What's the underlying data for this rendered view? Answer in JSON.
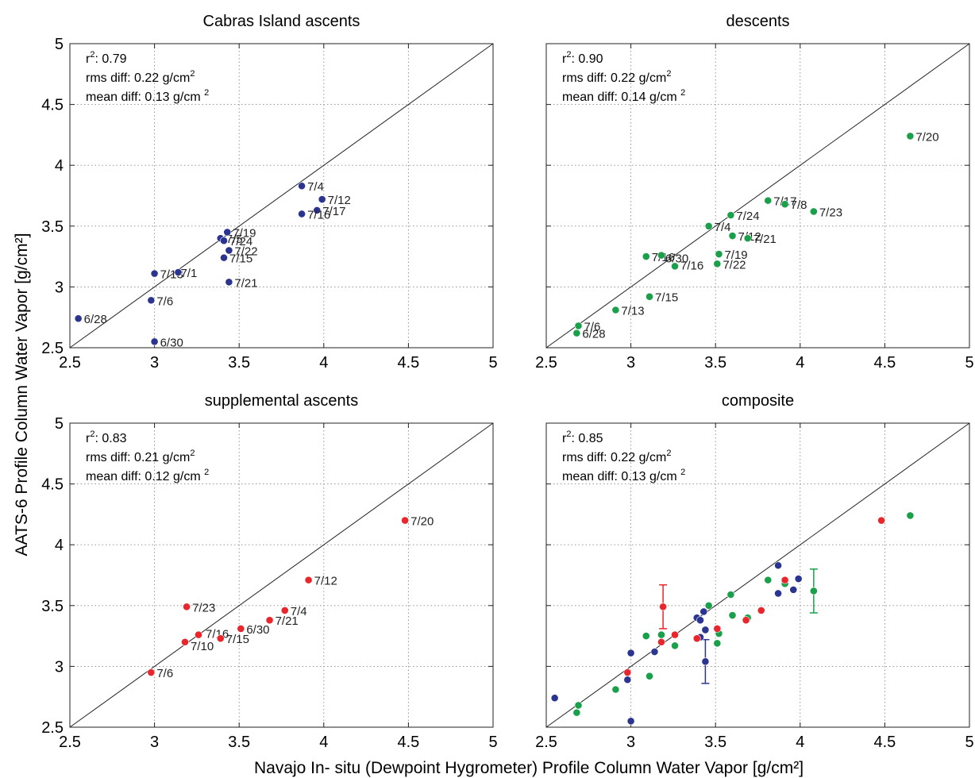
{
  "figure": {
    "ylabel": "AATS-6 Profile Column Water Vapor [g/cm²]",
    "xlabel": "Navajo In- situ (Dewpoint Hygrometer) Profile Column Water Vapor [g/cm²]"
  },
  "chart_data": [
    {
      "type": "scatter",
      "title": "Cabras Island ascents",
      "xlim": [
        2.5,
        5
      ],
      "ylim": [
        2.5,
        5
      ],
      "xticks": [
        "2.5",
        "3",
        "3.5",
        "4",
        "4.5",
        "5"
      ],
      "yticks": [
        "2.5",
        "3",
        "3.5",
        "4",
        "4.5",
        "5"
      ],
      "grid": true,
      "reference_line": "1:1",
      "stats": [
        "r²: 0.79",
        "rms diff: 0.22 g/cm²",
        "mean diff: 0.13 g/cm ²"
      ],
      "color": "#2b3590",
      "points": [
        {
          "x": 2.55,
          "y": 2.74,
          "label": "6/28"
        },
        {
          "x": 2.98,
          "y": 2.89,
          "label": "7/6"
        },
        {
          "x": 3.0,
          "y": 2.55,
          "label": "6/30"
        },
        {
          "x": 3.0,
          "y": 3.11,
          "label": "7/13"
        },
        {
          "x": 3.14,
          "y": 3.12,
          "label": "7/1"
        },
        {
          "x": 3.39,
          "y": 3.4,
          "label": "7/5"
        },
        {
          "x": 3.43,
          "y": 3.45,
          "label": "7/19"
        },
        {
          "x": 3.41,
          "y": 3.38,
          "label": "7/24"
        },
        {
          "x": 3.44,
          "y": 3.3,
          "label": "7/22"
        },
        {
          "x": 3.41,
          "y": 3.24,
          "label": "7/15"
        },
        {
          "x": 3.44,
          "y": 3.04,
          "label": "7/21"
        },
        {
          "x": 3.87,
          "y": 3.83,
          "label": "7/4"
        },
        {
          "x": 3.99,
          "y": 3.72,
          "label": "7/12"
        },
        {
          "x": 3.96,
          "y": 3.63,
          "label": "7/17"
        },
        {
          "x": 3.87,
          "y": 3.6,
          "label": "7/16"
        }
      ]
    },
    {
      "type": "scatter",
      "title": "descents",
      "xlim": [
        2.5,
        5
      ],
      "ylim": [
        2.5,
        5
      ],
      "xticks": [
        "2.5",
        "3",
        "3.5",
        "4",
        "4.5",
        "5"
      ],
      "yticks": [],
      "grid": true,
      "reference_line": "1:1",
      "stats": [
        "r²: 0.90",
        "rms diff: 0.22 g/cm²",
        "mean diff:  0.14 g/cm ²"
      ],
      "color": "#1aa04a",
      "points": [
        {
          "x": 2.69,
          "y": 2.68,
          "label": "7/6"
        },
        {
          "x": 2.68,
          "y": 2.62,
          "label": "6/28"
        },
        {
          "x": 2.91,
          "y": 2.81,
          "label": "7/13"
        },
        {
          "x": 3.11,
          "y": 2.92,
          "label": "7/15"
        },
        {
          "x": 3.09,
          "y": 3.25,
          "label": "7/16"
        },
        {
          "x": 3.18,
          "y": 3.26,
          "label": "6/30"
        },
        {
          "x": 3.26,
          "y": 3.17,
          "label": "7/16"
        },
        {
          "x": 3.46,
          "y": 3.5,
          "label": "7/4"
        },
        {
          "x": 3.59,
          "y": 3.59,
          "label": "7/24"
        },
        {
          "x": 3.6,
          "y": 3.42,
          "label": "7/12"
        },
        {
          "x": 3.69,
          "y": 3.4,
          "label": "7/21"
        },
        {
          "x": 3.52,
          "y": 3.27,
          "label": "7/19"
        },
        {
          "x": 3.51,
          "y": 3.19,
          "label": "7/22"
        },
        {
          "x": 3.81,
          "y": 3.71,
          "label": "7/17"
        },
        {
          "x": 3.91,
          "y": 3.68,
          "label": "7/8"
        },
        {
          "x": 4.08,
          "y": 3.62,
          "label": "7/23"
        },
        {
          "x": 4.65,
          "y": 4.24,
          "label": "7/20"
        }
      ]
    },
    {
      "type": "scatter",
      "title": "supplemental ascents",
      "xlim": [
        2.5,
        5
      ],
      "ylim": [
        2.5,
        5
      ],
      "xticks": [
        "2.5",
        "3",
        "3.5",
        "4",
        "4.5",
        "5"
      ],
      "yticks": [
        "2.5",
        "3",
        "3.5",
        "4",
        "4.5",
        "5"
      ],
      "grid": true,
      "reference_line": "1:1",
      "stats": [
        "r²: 0.83",
        "rms diff: 0.21 g/cm²",
        "mean diff:  0.12 g/cm ²"
      ],
      "color": "#e8262b",
      "points": [
        {
          "x": 2.98,
          "y": 2.95,
          "label": "7/6"
        },
        {
          "x": 3.18,
          "y": 3.2,
          "label": "7/10"
        },
        {
          "x": 3.26,
          "y": 3.26,
          "label": "7/16"
        },
        {
          "x": 3.39,
          "y": 3.23,
          "label": "7/15"
        },
        {
          "x": 3.19,
          "y": 3.49,
          "label": "7/23"
        },
        {
          "x": 3.51,
          "y": 3.31,
          "label": "6/30"
        },
        {
          "x": 3.68,
          "y": 3.38,
          "label": "7/21"
        },
        {
          "x": 3.77,
          "y": 3.46,
          "label": "7/4"
        },
        {
          "x": 3.91,
          "y": 3.71,
          "label": "7/12"
        },
        {
          "x": 4.48,
          "y": 4.2,
          "label": "7/20"
        }
      ]
    },
    {
      "type": "scatter",
      "title": "composite",
      "xlim": [
        2.5,
        5
      ],
      "ylim": [
        2.5,
        5
      ],
      "xticks": [
        "2.5",
        "3",
        "3.5",
        "4",
        "4.5",
        "5"
      ],
      "yticks": [],
      "grid": true,
      "reference_line": "1:1",
      "stats": [
        "r²: 0.85",
        "rms diff: 0.22 g/cm²",
        "mean diff:  0.13 g/cm ²"
      ],
      "composite_of": [
        0,
        1,
        2
      ],
      "error_bars": [
        {
          "x": 3.19,
          "y": 3.49,
          "ylow": 3.31,
          "yhigh": 3.67,
          "color": "#e8262b"
        },
        {
          "x": 3.44,
          "y": 3.04,
          "ylow": 2.86,
          "yhigh": 3.22,
          "color": "#2b3590"
        },
        {
          "x": 4.08,
          "y": 3.62,
          "ylow": 3.44,
          "yhigh": 3.8,
          "color": "#1aa04a"
        }
      ]
    }
  ]
}
